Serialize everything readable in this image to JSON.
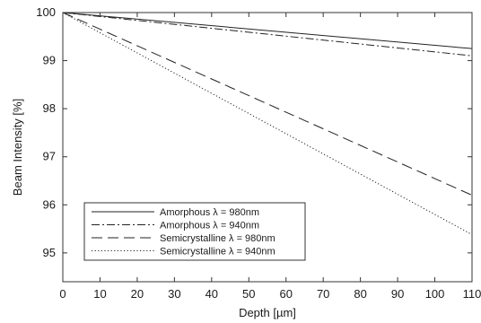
{
  "chart_data": {
    "type": "line",
    "title": "",
    "xlabel": "Depth [µm]",
    "ylabel": "Beam Intensity [%]",
    "xlim": [
      0,
      110
    ],
    "ylim": [
      94.4,
      100
    ],
    "xticks": [
      0,
      10,
      20,
      30,
      40,
      50,
      60,
      70,
      80,
      90,
      100,
      110
    ],
    "yticks": [
      95,
      96,
      97,
      98,
      99,
      100
    ],
    "grid": false,
    "legend_position": "bottom-left",
    "series": [
      {
        "name": "Amorphous λ = 980nm",
        "style": "solid",
        "x": [
          0,
          110
        ],
        "y": [
          100,
          99.25
        ]
      },
      {
        "name": "Amorphous λ = 940nm",
        "style": "dash-dot",
        "x": [
          0,
          110
        ],
        "y": [
          100,
          99.1
        ]
      },
      {
        "name": "Semicrystalline λ = 980nm",
        "style": "dashed",
        "x": [
          0,
          110
        ],
        "y": [
          100,
          96.2
        ]
      },
      {
        "name": "Semicrystalline λ = 940nm",
        "style": "dotted",
        "x": [
          0,
          110
        ],
        "y": [
          100,
          95.38
        ]
      }
    ]
  }
}
